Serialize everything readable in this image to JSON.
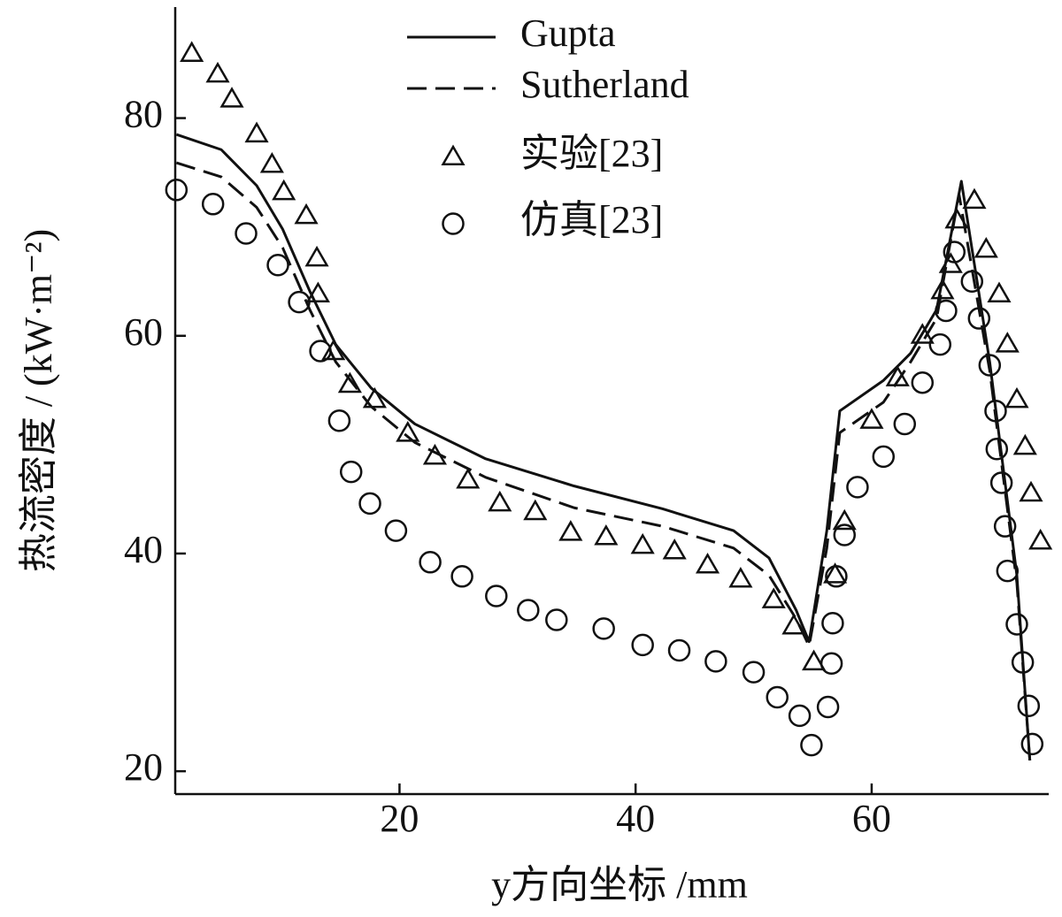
{
  "chart_data": {
    "type": "line",
    "x_label": "y方向坐标 /mm",
    "y_label": "热流密度 / (kW·m⁻²)",
    "xlim": [
      1,
      75
    ],
    "xticks": [
      20,
      40,
      60
    ],
    "ylim": [
      17.9,
      90.2
    ],
    "yticks": [
      20,
      40,
      60,
      80
    ],
    "legend": "top",
    "series": [
      {
        "name": "Gupta",
        "color": "#111111",
        "marker": "none",
        "dash": "solid",
        "x": [
          1.1,
          4.9,
          7.9,
          10.1,
          12.4,
          14.6,
          17.6,
          21.3,
          27.3,
          34.8,
          42.3,
          48.3,
          51.3,
          53.6,
          54.7,
          56.2,
          57.3,
          61.0,
          63.3,
          65.5,
          67.6,
          70.0,
          72.3,
          73.4
        ],
        "values": [
          78.5,
          77.1,
          73.8,
          69.8,
          64.1,
          59.2,
          55.2,
          51.9,
          48.7,
          46.2,
          44.1,
          42.1,
          39.6,
          34.8,
          31.9,
          42.1,
          53.1,
          55.9,
          58.4,
          62.4,
          74.2,
          57.6,
          38.0,
          21.0
        ]
      },
      {
        "name": "Sutherland",
        "color": "#111111",
        "marker": "none",
        "dash": "dashed",
        "x": [
          1.1,
          4.9,
          7.9,
          10.1,
          12.4,
          14.6,
          17.6,
          21.3,
          27.3,
          34.8,
          42.3,
          48.3,
          51.3,
          53.6,
          54.7,
          56.2,
          57.3,
          61.0,
          63.3,
          65.5,
          67.4,
          70.0,
          72.3,
          73.4
        ],
        "values": [
          75.9,
          74.6,
          71.8,
          68.1,
          62.4,
          57.6,
          53.5,
          50.2,
          47.0,
          44.2,
          42.5,
          40.5,
          38.0,
          34.0,
          31.5,
          40.5,
          51.1,
          53.9,
          57.6,
          61.6,
          73.0,
          56.8,
          37.3,
          21.0
        ]
      },
      {
        "name": "实验[23]",
        "color": "#111111",
        "marker": "triangle",
        "dash": "none",
        "x": [
          2.4,
          4.6,
          5.8,
          7.9,
          9.2,
          10.2,
          12.1,
          13.0,
          13.1,
          14.4,
          15.8,
          17.9,
          20.7,
          23.0,
          25.8,
          28.5,
          31.5,
          34.5,
          37.5,
          40.6,
          43.3,
          46.1,
          48.9,
          51.7,
          53.4,
          55.1,
          56.9,
          57.7,
          60.0,
          62.2,
          64.3,
          66.0,
          66.7,
          67.2,
          68.7,
          69.7,
          70.8,
          71.5,
          72.3,
          73.0,
          73.5,
          74.3
        ],
        "values": [
          85.9,
          84.0,
          81.7,
          78.5,
          75.7,
          73.2,
          71.0,
          67.1,
          63.8,
          58.5,
          55.5,
          54.1,
          51.0,
          48.9,
          46.7,
          44.6,
          43.8,
          41.9,
          41.5,
          40.7,
          40.2,
          38.9,
          37.6,
          35.7,
          33.3,
          30.0,
          38.0,
          42.9,
          52.2,
          56.1,
          60.0,
          64.1,
          66.5,
          70.6,
          72.4,
          67.9,
          63.8,
          59.2,
          54.1,
          49.8,
          45.5,
          41.1
        ]
      },
      {
        "name": "仿真[23]",
        "color": "#111111",
        "marker": "circle",
        "dash": "none",
        "x": [
          1.1,
          4.2,
          7.0,
          9.7,
          11.5,
          13.3,
          14.9,
          15.9,
          17.5,
          19.7,
          22.6,
          25.3,
          28.2,
          30.9,
          33.3,
          37.3,
          40.6,
          43.7,
          46.8,
          50.0,
          52.0,
          53.9,
          54.9,
          56.3,
          56.6,
          56.7,
          57.0,
          57.7,
          58.8,
          61.0,
          62.8,
          64.3,
          65.8,
          66.3,
          67.0,
          68.5,
          69.1,
          70.0,
          70.5,
          70.6,
          71.0,
          71.3,
          71.5,
          72.3,
          72.8,
          73.3,
          73.6
        ],
        "values": [
          73.4,
          72.1,
          69.4,
          66.5,
          63.1,
          58.6,
          52.2,
          47.5,
          44.6,
          42.1,
          39.2,
          37.9,
          36.1,
          34.8,
          33.9,
          33.1,
          31.6,
          31.1,
          30.1,
          29.1,
          26.8,
          25.1,
          22.4,
          25.9,
          29.9,
          33.6,
          37.9,
          41.7,
          46.1,
          48.9,
          51.9,
          55.7,
          59.2,
          62.3,
          67.7,
          65.0,
          61.6,
          57.3,
          53.1,
          49.6,
          46.5,
          42.5,
          38.4,
          33.5,
          30.0,
          26.0,
          22.5
        ]
      }
    ]
  }
}
